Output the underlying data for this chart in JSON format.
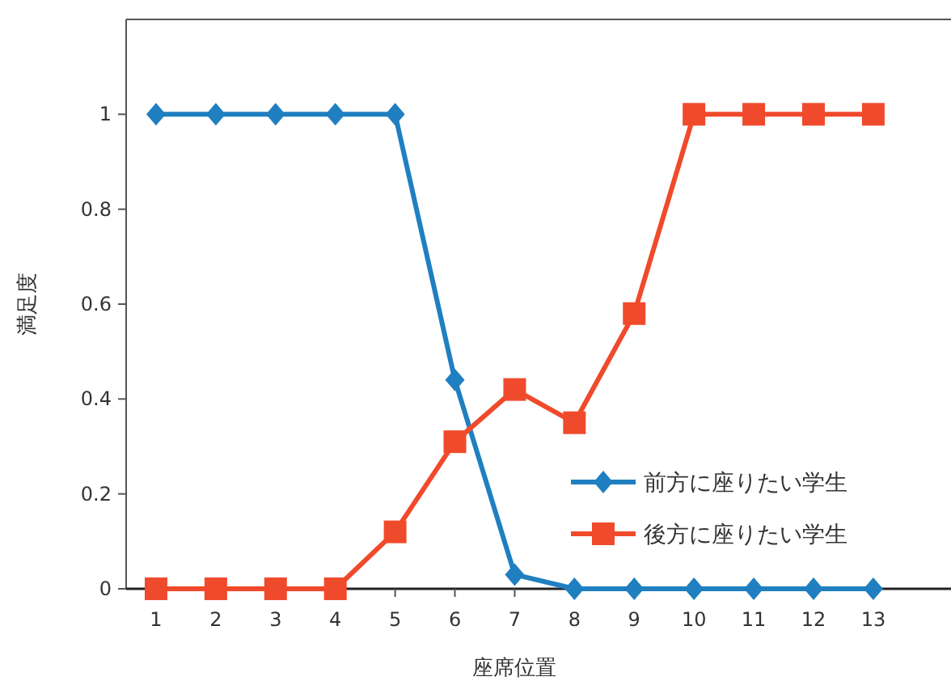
{
  "chart_data": {
    "type": "line",
    "xlabel": "座席位置",
    "ylabel": "満足度",
    "x": [
      1,
      2,
      3,
      4,
      5,
      6,
      7,
      8,
      9,
      10,
      11,
      12,
      13
    ],
    "series": [
      {
        "name": "前方に座りたい学生",
        "color": "#1f7fc0",
        "marker": "diamond",
        "values": [
          1,
          1,
          1,
          1,
          1,
          0.44,
          0.03,
          0,
          0,
          0,
          0,
          0,
          0
        ]
      },
      {
        "name": "後方に座りたい学生",
        "color": "#f04a2c",
        "marker": "square",
        "values": [
          0,
          0,
          0,
          0,
          0.12,
          0.31,
          0.42,
          0.35,
          0.58,
          1,
          1,
          1,
          1
        ]
      }
    ],
    "xlim": [
      0.5,
      14.3
    ],
    "ylim": [
      0,
      1.2
    ],
    "xticks": [
      1,
      2,
      3,
      4,
      5,
      6,
      7,
      8,
      9,
      10,
      11,
      12,
      13
    ],
    "yticks": [
      0,
      0.2,
      0.4,
      0.6,
      0.8,
      1
    ],
    "legend": "bottom right",
    "grid": false
  }
}
